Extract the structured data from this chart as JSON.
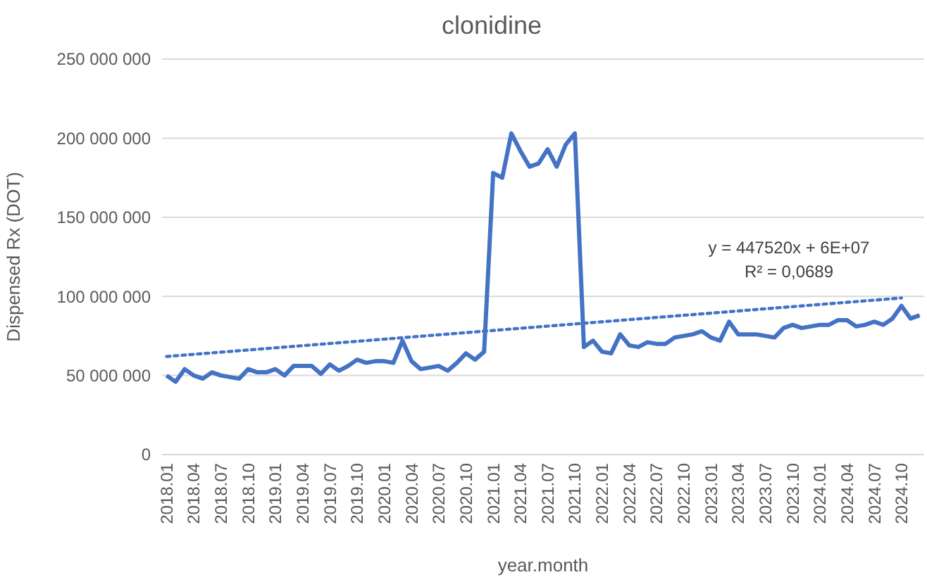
{
  "chart_data": {
    "type": "line",
    "title": "clonidine",
    "xlabel": "year.month",
    "ylabel": "Dispensed Rx (DOT)",
    "annotations": [
      "y = 447520x + 6E+07",
      "R² = 0,0689"
    ],
    "categories": [
      "2018.01",
      null,
      null,
      "2018.04",
      null,
      null,
      "2018.07",
      null,
      null,
      "2018.10",
      null,
      null,
      "2019.01",
      null,
      null,
      "2019.04",
      null,
      null,
      "2019.07",
      null,
      null,
      "2019.10",
      null,
      null,
      "2020.01",
      null,
      null,
      "2020.04",
      null,
      null,
      "2020.07",
      null,
      null,
      "2020.10",
      null,
      null,
      "2021.01",
      null,
      null,
      "2021.04",
      null,
      null,
      "2021.07",
      null,
      null,
      "2021.10",
      null,
      null,
      "2022.01",
      null,
      null,
      "2022.04",
      null,
      null,
      "2022.07",
      null,
      null,
      "2022.10",
      null,
      null,
      "2023.01",
      null,
      null,
      "2023.04",
      null,
      null,
      "2023.07",
      null,
      null,
      "2023.10",
      null,
      null,
      "2024.01",
      null,
      null,
      "2024.04",
      null,
      null,
      "2024.07",
      null,
      null,
      "2024.10",
      null,
      null
    ],
    "ylim": [
      0,
      250000000
    ],
    "yticks": [
      0,
      {
        "value": 50000000,
        "label": "50 000 000"
      },
      {
        "value": 100000000,
        "label": "100 000 000"
      },
      {
        "value": 150000000,
        "label": "150 000 000"
      },
      {
        "value": 200000000,
        "label": "200 000 000"
      },
      {
        "value": 250000000,
        "label": "250 000 000"
      }
    ],
    "grid": "y",
    "marker": "none",
    "series": [
      {
        "color": "#4472c4",
        "line_style": "solid",
        "values": [
          50000000,
          46000000,
          54000000,
          50000000,
          48000000,
          52000000,
          50000000,
          49000000,
          48000000,
          54000000,
          52000000,
          52000000,
          54000000,
          50000000,
          56000000,
          56000000,
          56000000,
          51000000,
          57000000,
          53000000,
          56000000,
          60000000,
          58000000,
          59000000,
          59000000,
          58000000,
          72000000,
          59000000,
          54000000,
          55000000,
          56000000,
          53000000,
          58000000,
          64000000,
          60000000,
          65000000,
          178000000,
          175000000,
          203000000,
          192000000,
          182000000,
          184000000,
          193000000,
          182000000,
          196000000,
          203000000,
          68000000,
          72000000,
          65000000,
          64000000,
          76000000,
          69000000,
          68000000,
          71000000,
          70000000,
          70000000,
          74000000,
          75000000,
          76000000,
          78000000,
          74000000,
          72000000,
          84000000,
          76000000,
          76000000,
          76000000,
          75000000,
          74000000,
          80000000,
          82000000,
          80000000,
          81000000,
          82000000,
          82000000,
          85000000,
          85000000,
          81000000,
          82000000,
          84000000,
          82000000,
          86000000,
          94000000,
          86000000,
          88000000
        ]
      },
      {
        "type": "line",
        "color": "#4472c4",
        "line_style": "dotted",
        "x": [
          "2018.01",
          "2024.10"
        ],
        "values": [
          62000000,
          99000000
        ]
      }
    ]
  }
}
